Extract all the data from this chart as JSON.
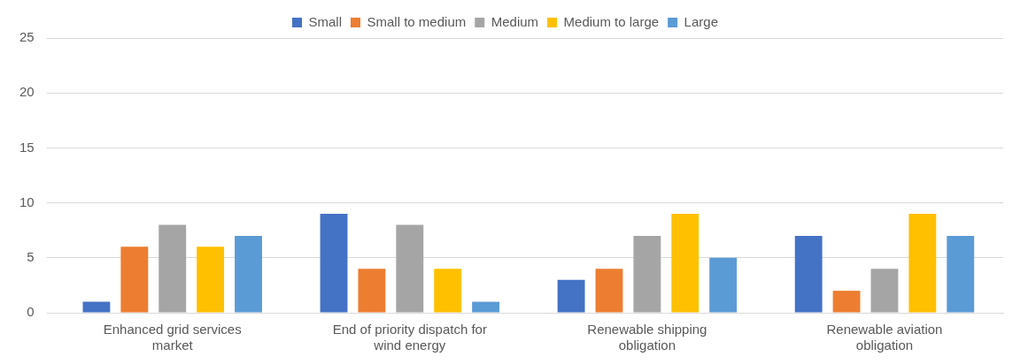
{
  "chart_data": {
    "type": "bar",
    "categories": [
      "Enhanced grid services market",
      "End of priority dispatch for wind energy",
      "Renewable shipping obligation",
      "Renewable aviation obligation"
    ],
    "series": [
      {
        "name": "Small",
        "color": "#4472c4",
        "values": [
          1,
          9,
          3,
          7
        ]
      },
      {
        "name": "Small to medium",
        "color": "#ed7d31",
        "values": [
          6,
          4,
          4,
          2
        ]
      },
      {
        "name": "Medium",
        "color": "#a5a5a5",
        "values": [
          8,
          8,
          7,
          4
        ]
      },
      {
        "name": "Medium to large",
        "color": "#ffc000",
        "values": [
          6,
          4,
          9,
          9
        ]
      },
      {
        "name": "Large",
        "color": "#5b9bd5",
        "values": [
          7,
          1,
          5,
          7
        ]
      }
    ],
    "ylim": [
      0,
      25
    ],
    "yticks": [
      0,
      5,
      10,
      15,
      20,
      25
    ],
    "grid": "y",
    "legend": "top"
  }
}
